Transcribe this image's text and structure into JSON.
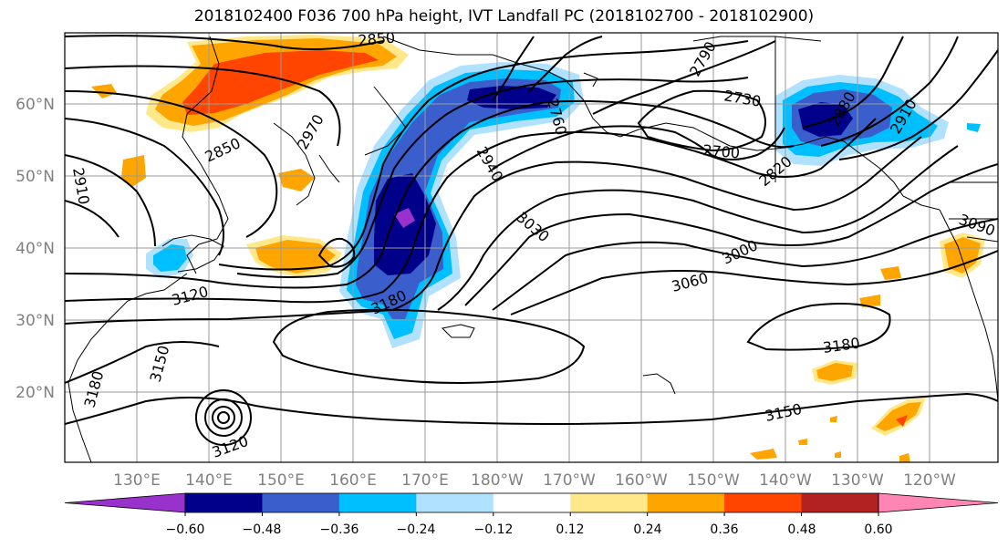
{
  "title": "2018102400 F036 700 hPa height, IVT Landfall PC (2018102700 - 2018102900)",
  "lat_labels": [
    "60°N",
    "50°N",
    "40°N",
    "30°N",
    "20°N"
  ],
  "lon_labels": [
    "130°E",
    "140°E",
    "150°E",
    "160°E",
    "170°E",
    "180°W",
    "170°W",
    "160°W",
    "150°W",
    "140°W",
    "130°W",
    "120°W"
  ],
  "contour_labels": [
    "2850",
    "2850",
    "2910",
    "2970",
    "2790",
    "2730",
    "2760",
    "2700",
    "2820",
    "2880",
    "2910",
    "2940",
    "3030",
    "3000",
    "3060",
    "3090",
    "3180",
    "3120",
    "3150",
    "3180",
    "3150",
    "3120",
    "3180"
  ],
  "colorbar": {
    "ticks": [
      "−0.60",
      "−0.48",
      "−0.36",
      "−0.24",
      "−0.12",
      "0.12",
      "0.24",
      "0.36",
      "0.48",
      "0.60"
    ],
    "colors": [
      "#9932cc",
      "#00008b",
      "#3a5fcd",
      "#00bfff",
      "#b0e2ff",
      "#ffffff",
      "#ffe88a",
      "#ffa500",
      "#ff4500",
      "#b22222",
      "#ff85b3"
    ]
  }
}
